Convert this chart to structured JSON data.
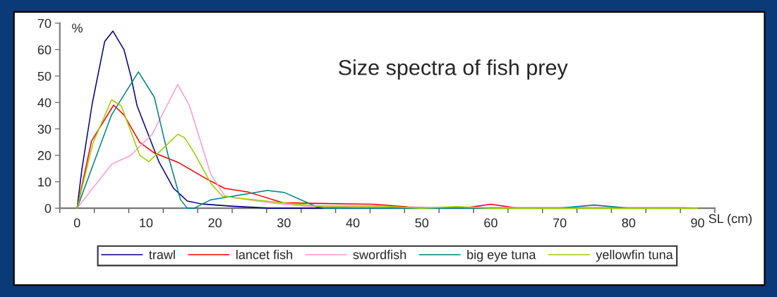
{
  "chart_data": {
    "type": "line",
    "title": "Size spectra of fish prey",
    "xlabel": "SL (cm)",
    "ylabel": "%",
    "xlim": [
      -2.5,
      92.5
    ],
    "ylim": [
      0,
      70
    ],
    "xticks": [
      0,
      10,
      20,
      30,
      40,
      50,
      60,
      70,
      80,
      90,
      {
        "value": -2.5,
        "label": null
      },
      {
        "value": 2.5,
        "label": null
      },
      {
        "value": 7.5,
        "label": null
      },
      {
        "value": 12.5,
        "label": null
      },
      {
        "value": 17.5,
        "label": null
      },
      {
        "value": 22.5,
        "label": null
      },
      {
        "value": 27.5,
        "label": null
      },
      {
        "value": 32.5,
        "label": null
      },
      {
        "value": 37.5,
        "label": null
      },
      {
        "value": 42.5,
        "label": null
      },
      {
        "value": 47.5,
        "label": null
      },
      {
        "value": 52.5,
        "label": null
      },
      {
        "value": 57.5,
        "label": null
      },
      {
        "value": 62.5,
        "label": null
      },
      {
        "value": 67.5,
        "label": null
      },
      {
        "value": 72.5,
        "label": null
      },
      {
        "value": 77.5,
        "label": null
      },
      {
        "value": 82.5,
        "label": null
      },
      {
        "value": 87.5,
        "label": null
      },
      {
        "value": 92.5,
        "label": null
      }
    ],
    "yticks": [
      0,
      10,
      20,
      30,
      40,
      50,
      60,
      70
    ],
    "grid": false,
    "legend": "bottom",
    "marker": "none",
    "line_style": "solid",
    "series": [
      {
        "name": "trawl",
        "color": "#000080",
        "x": [
          0,
          0.7,
          2.2,
          4.0,
          5.2,
          6.8,
          7.8,
          8.7,
          9.9,
          11.9,
          14,
          16,
          18.1,
          22.2,
          28,
          90
        ],
        "values": [
          0,
          14.7,
          39.6,
          63,
          67,
          60,
          50,
          38.8,
          30.7,
          17.4,
          7.5,
          2.7,
          1.6,
          0.8,
          0,
          0
        ]
      },
      {
        "name": "lancet fish",
        "color": "#ff0000",
        "x": [
          0,
          2.1,
          5.3,
          6.8,
          9.1,
          11.2,
          14.6,
          18.7,
          21.4,
          24.7,
          29.8,
          34.8,
          43,
          48,
          52,
          56,
          60,
          64,
          90
        ],
        "values": [
          0,
          25.4,
          39,
          35.3,
          24.9,
          20.9,
          17.4,
          11.2,
          7.5,
          6.2,
          2.1,
          1.8,
          1.5,
          0.5,
          0,
          0,
          1.5,
          0,
          0
        ]
      },
      {
        "name": "swordfish",
        "color": "#ff99cc",
        "x": [
          0,
          5,
          7.8,
          10.9,
          14.6,
          16.3,
          19.4,
          21.4,
          22.8,
          27.9,
          33,
          40,
          80,
          88,
          90
        ],
        "values": [
          0,
          16.6,
          20,
          28,
          46.8,
          38.8,
          12.8,
          4.8,
          4,
          2.1,
          0.8,
          0.3,
          0.3,
          0.3,
          0
        ]
      },
      {
        "name": "big eye tuna",
        "color": "#008080",
        "x": [
          0,
          5,
          8.9,
          11.2,
          13.2,
          15,
          16,
          17,
          19.4,
          27.6,
          30,
          34.8,
          36,
          70,
          75,
          80,
          90
        ],
        "values": [
          0,
          35.3,
          51.6,
          42,
          20,
          3.2,
          0,
          0,
          3.2,
          6.7,
          6,
          0.5,
          0,
          0,
          1.2,
          0,
          0
        ]
      },
      {
        "name": "yellowfin tuna",
        "color": "#99cc00",
        "x": [
          0,
          2.3,
          5,
          6.4,
          9.1,
          10.4,
          12.5,
          14.6,
          15.6,
          17,
          19.4,
          21.1,
          24.5,
          29.6,
          34.8,
          44,
          50,
          55,
          60,
          90
        ],
        "values": [
          0,
          24.6,
          41,
          38.8,
          20,
          17.6,
          22.7,
          28,
          26.7,
          20.9,
          9.4,
          4.5,
          3.5,
          2.1,
          0.8,
          0.8,
          0,
          0.6,
          0,
          0
        ]
      }
    ]
  }
}
